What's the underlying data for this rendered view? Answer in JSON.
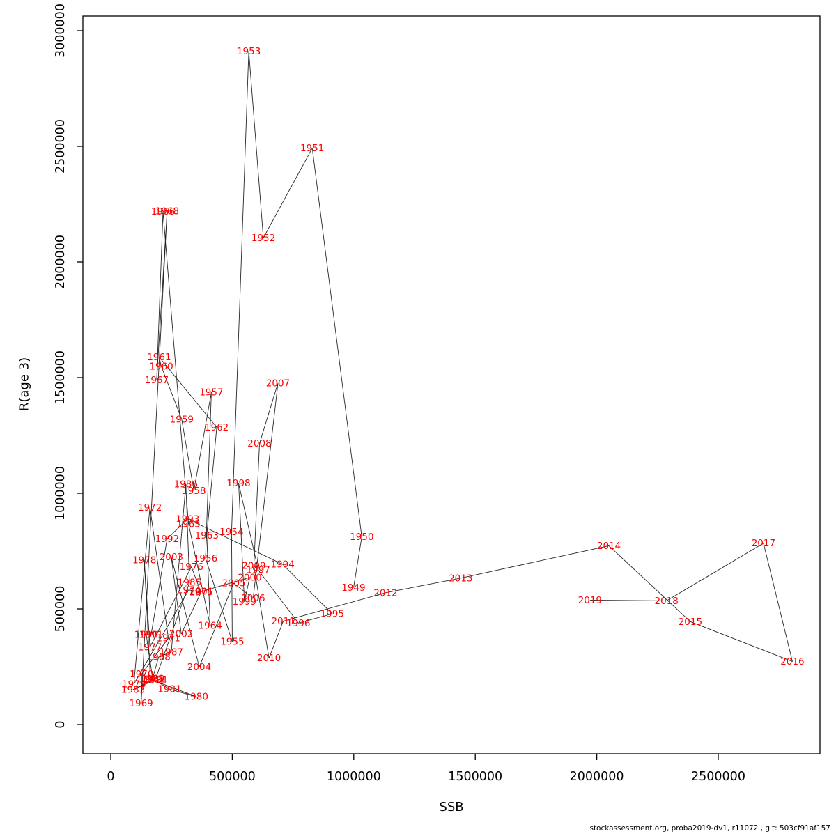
{
  "figure": {
    "xlabel": "SSB",
    "ylabel": "R(age 3)",
    "footer": "stockassessment.org, proba2019-dv1, r11072 , git: 503cf91af157",
    "label_color": "#ff0000",
    "line_color": "#262626",
    "axis_color": "#000000",
    "background": "#ffffff"
  },
  "chart_data": {
    "type": "scatter",
    "title": "",
    "xlabel": "SSB",
    "ylabel": "R(age 3)",
    "legend": "none",
    "grid": false,
    "point_labels": "year",
    "connect_points": "chronological line",
    "x_ticks": [
      0,
      500000,
      1000000,
      1500000,
      2000000,
      2500000
    ],
    "y_ticks": [
      0,
      500000,
      1000000,
      1500000,
      2000000,
      2500000,
      3000000
    ],
    "xlim": [
      -115000,
      2920000
    ],
    "ylim": [
      -127000,
      3065000
    ],
    "series": [
      {
        "name": "stock-recruitment trajectory",
        "points": [
          {
            "year": 1949,
            "ssb": 999000,
            "r": 592000
          },
          {
            "year": 1950,
            "ssb": 1033000,
            "r": 811000
          },
          {
            "year": 1951,
            "ssb": 829000,
            "r": 2492000
          },
          {
            "year": 1952,
            "ssb": 628000,
            "r": 2104000
          },
          {
            "year": 1953,
            "ssb": 568000,
            "r": 2911000
          },
          {
            "year": 1954,
            "ssb": 497000,
            "r": 833000
          },
          {
            "year": 1955,
            "ssb": 500000,
            "r": 358000
          },
          {
            "year": 1956,
            "ssb": 390000,
            "r": 719000
          },
          {
            "year": 1957,
            "ssb": 414000,
            "r": 1436000
          },
          {
            "year": 1958,
            "ssb": 342000,
            "r": 1011000
          },
          {
            "year": 1959,
            "ssb": 292000,
            "r": 1320000
          },
          {
            "year": 1960,
            "ssb": 208000,
            "r": 1548000
          },
          {
            "year": 1961,
            "ssb": 199000,
            "r": 1589000
          },
          {
            "year": 1962,
            "ssb": 436000,
            "r": 1285000
          },
          {
            "year": 1963,
            "ssb": 395000,
            "r": 818000
          },
          {
            "year": 1964,
            "ssb": 409000,
            "r": 428000
          },
          {
            "year": 1965,
            "ssb": 320000,
            "r": 868000
          },
          {
            "year": 1966,
            "ssb": 215000,
            "r": 2218000
          },
          {
            "year": 1967,
            "ssb": 189000,
            "r": 1490000
          },
          {
            "year": 1968,
            "ssb": 232000,
            "r": 2220000
          },
          {
            "year": 1969,
            "ssb": 125000,
            "r": 92000
          },
          {
            "year": 1970,
            "ssb": 127000,
            "r": 219000
          },
          {
            "year": 1971,
            "ssb": 237000,
            "r": 373000
          },
          {
            "year": 1972,
            "ssb": 161000,
            "r": 939000
          },
          {
            "year": 1973,
            "ssb": 95000,
            "r": 175000
          },
          {
            "year": 1974,
            "ssb": 321000,
            "r": 582000
          },
          {
            "year": 1975,
            "ssb": 371000,
            "r": 572000
          },
          {
            "year": 1976,
            "ssb": 332000,
            "r": 682000
          },
          {
            "year": 1977,
            "ssb": 161000,
            "r": 335000
          },
          {
            "year": 1978,
            "ssb": 138000,
            "r": 711000
          },
          {
            "year": 1979,
            "ssb": 163000,
            "r": 196000
          },
          {
            "year": 1980,
            "ssb": 352000,
            "r": 120000
          },
          {
            "year": 1981,
            "ssb": 242000,
            "r": 153000
          },
          {
            "year": 1982,
            "ssb": 175000,
            "r": 196000
          },
          {
            "year": 1983,
            "ssb": 92000,
            "r": 151000
          },
          {
            "year": 1984,
            "ssb": 183000,
            "r": 193000
          },
          {
            "year": 1985,
            "ssb": 324000,
            "r": 614000
          },
          {
            "year": 1986,
            "ssb": 309000,
            "r": 1039000
          },
          {
            "year": 1987,
            "ssb": 249000,
            "r": 314000
          },
          {
            "year": 1988,
            "ssb": 197000,
            "r": 292000
          },
          {
            "year": 1989,
            "ssb": 172000,
            "r": 199000
          },
          {
            "year": 1990,
            "ssb": 146000,
            "r": 389000
          },
          {
            "year": 1991,
            "ssb": 166000,
            "r": 389000
          },
          {
            "year": 1992,
            "ssb": 232000,
            "r": 803000
          },
          {
            "year": 1993,
            "ssb": 316000,
            "r": 889000
          },
          {
            "year": 1994,
            "ssb": 707000,
            "r": 693000
          },
          {
            "year": 1995,
            "ssb": 911000,
            "r": 479000
          },
          {
            "year": 1996,
            "ssb": 772000,
            "r": 439000
          },
          {
            "year": 1997,
            "ssb": 607000,
            "r": 668000
          },
          {
            "year": 1998,
            "ssb": 526000,
            "r": 1043000
          },
          {
            "year": 1999,
            "ssb": 550000,
            "r": 531000
          },
          {
            "year": 2000,
            "ssb": 572000,
            "r": 636000
          },
          {
            "year": 2001,
            "ssb": 373000,
            "r": 575000
          },
          {
            "year": 2002,
            "ssb": 290000,
            "r": 392000
          },
          {
            "year": 2003,
            "ssb": 249000,
            "r": 724000
          },
          {
            "year": 2004,
            "ssb": 364000,
            "r": 249000
          },
          {
            "year": 2005,
            "ssb": 506000,
            "r": 611000
          },
          {
            "year": 2006,
            "ssb": 586000,
            "r": 546000
          },
          {
            "year": 2007,
            "ssb": 688000,
            "r": 1476000
          },
          {
            "year": 2008,
            "ssb": 612000,
            "r": 1215000
          },
          {
            "year": 2009,
            "ssb": 589000,
            "r": 686000
          },
          {
            "year": 2010,
            "ssb": 651000,
            "r": 287000
          },
          {
            "year": 2011,
            "ssb": 710000,
            "r": 447000
          },
          {
            "year": 2012,
            "ssb": 1131000,
            "r": 570000
          },
          {
            "year": 2013,
            "ssb": 1440000,
            "r": 633000
          },
          {
            "year": 2014,
            "ssb": 2050000,
            "r": 773000
          },
          {
            "year": 2015,
            "ssb": 2385000,
            "r": 445000
          },
          {
            "year": 2016,
            "ssb": 2805000,
            "r": 273000
          },
          {
            "year": 2017,
            "ssb": 2686000,
            "r": 784000
          },
          {
            "year": 2018,
            "ssb": 2287000,
            "r": 535000
          },
          {
            "year": 2019,
            "ssb": 1972000,
            "r": 538000
          }
        ]
      }
    ]
  }
}
